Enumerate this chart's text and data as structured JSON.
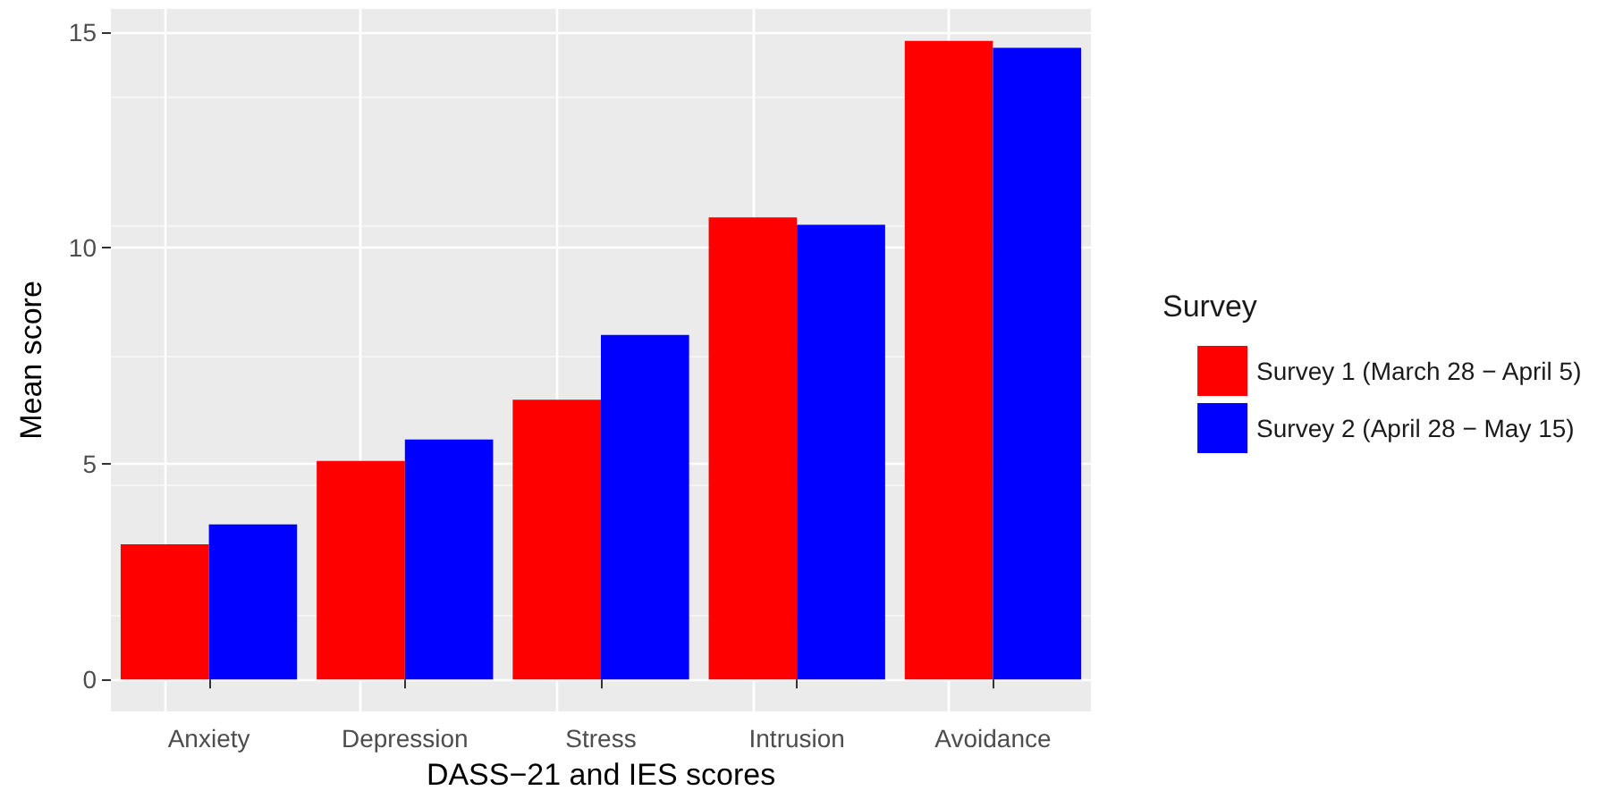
{
  "chart_data": {
    "type": "bar",
    "xlabel": "DASS−21 and IES scores",
    "ylabel": "Mean score",
    "legend_title": "Survey",
    "categories": [
      "Anxiety",
      "Depression",
      "Stress",
      "Intrusion",
      "Avoidance"
    ],
    "series": [
      {
        "name": "Survey 1 (March 28 − April 5)",
        "color": "#ff0000",
        "values": [
          3.13,
          5.06,
          6.48,
          10.7,
          14.79
        ]
      },
      {
        "name": "Survey 2 (April 28 − May 15)",
        "color": "#0000ff",
        "values": [
          3.59,
          5.56,
          7.98,
          10.53,
          14.63
        ]
      }
    ],
    "ylim": [
      -0.74,
      15.53
    ],
    "yticks": [
      0,
      5,
      10,
      15
    ],
    "grid": true,
    "legend": "right"
  }
}
